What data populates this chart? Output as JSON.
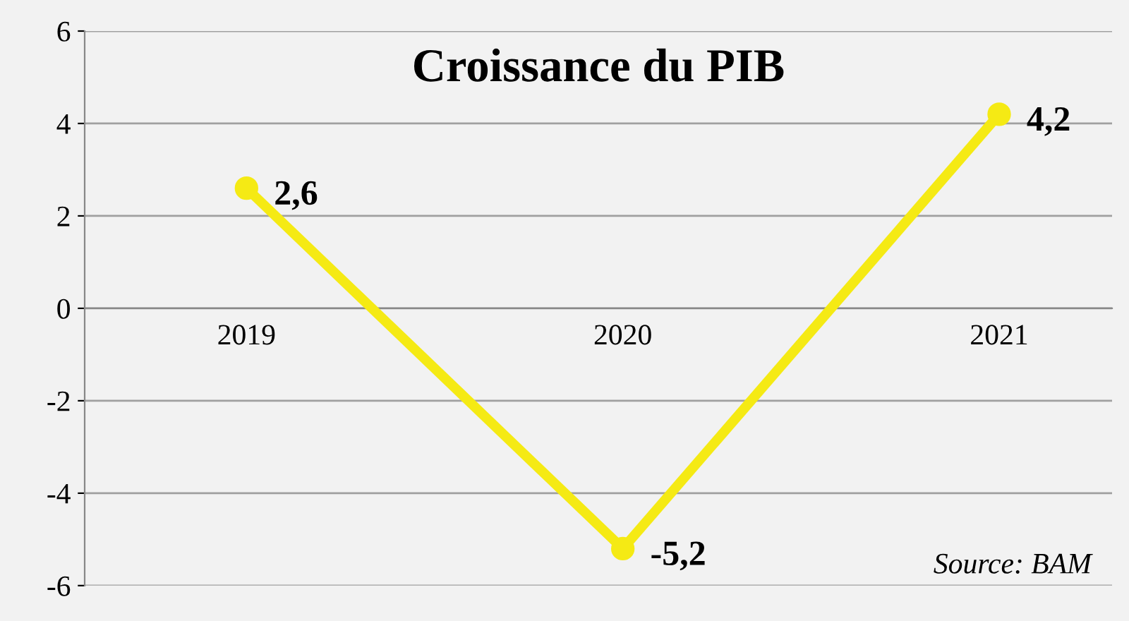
{
  "chart_data": {
    "type": "line",
    "title": "Croissance du PIB",
    "categories": [
      "2019",
      "2020",
      "2021"
    ],
    "series": [
      {
        "color": "#f5ea14",
        "values": [
          2.6,
          -5.2,
          4.2
        ],
        "value_labels": [
          "2,6",
          "-5,2",
          "4,2"
        ]
      }
    ],
    "ylim": [
      -6,
      6
    ],
    "yticks": [
      -6,
      -4,
      -2,
      0,
      2,
      4,
      6
    ],
    "grid": "y",
    "marker": "circle",
    "line_style": "solid",
    "annotations": [
      "Source: BAM"
    ]
  }
}
